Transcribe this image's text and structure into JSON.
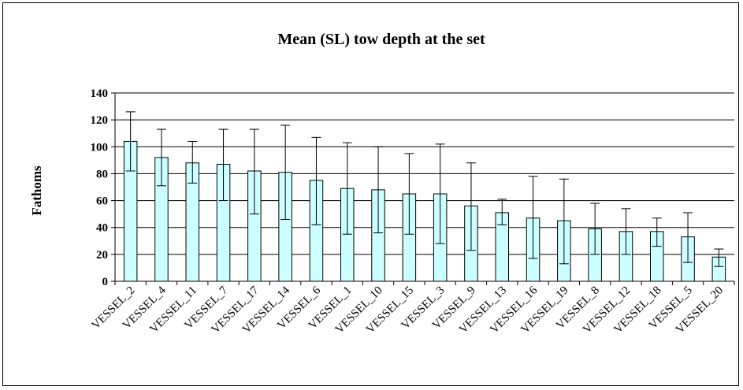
{
  "chart_data": {
    "type": "bar",
    "title": "Mean (SL) tow depth at the set",
    "xlabel": "",
    "ylabel": "Fathoms",
    "ylim": [
      0,
      140
    ],
    "yticks": [
      "0",
      "20",
      "40",
      "60",
      "80",
      "100",
      "120",
      "140"
    ],
    "grid": true,
    "legend": "none",
    "bar_color": "#ccffff",
    "categories": [
      "VESSEL_2",
      "VESSEL_4",
      "VESSEL_11",
      "VESSEL_7",
      "VESSEL_17",
      "VESSEL_14",
      "VESSEL_6",
      "VESSEL_1",
      "VESSEL_10",
      "VESSEL_15",
      "VESSEL_3",
      "VESSEL_9",
      "VESSEL_13",
      "VESSEL_16",
      "VESSEL_19",
      "VESSEL_8",
      "VESSEL_12",
      "VESSEL_18",
      "VESSEL_5",
      "VESSEL_20"
    ],
    "values": [
      104,
      92,
      88,
      87,
      82,
      81,
      75,
      69,
      68,
      65,
      65,
      56,
      51,
      47,
      45,
      39,
      37,
      37,
      33,
      18
    ],
    "error_upper": [
      126,
      113,
      104,
      113,
      113,
      116,
      107,
      103,
      100,
      95,
      102,
      88,
      61,
      78,
      76,
      58,
      54,
      47,
      51,
      24
    ],
    "error_lower": [
      82,
      71,
      73,
      60,
      50,
      46,
      42,
      35,
      36,
      35,
      28,
      23,
      42,
      17,
      13,
      20,
      20,
      26,
      14,
      11
    ]
  }
}
